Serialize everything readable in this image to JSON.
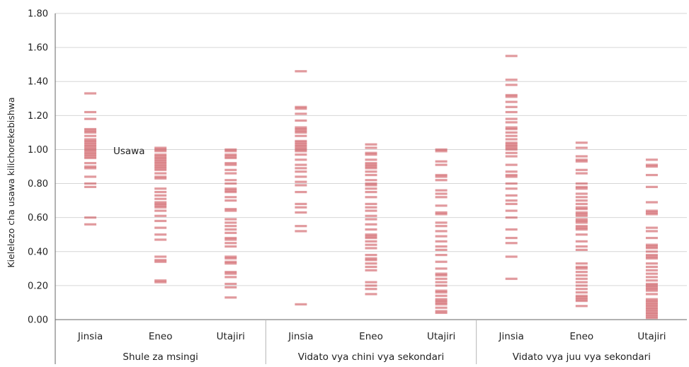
{
  "chart_data": {
    "type": "strip",
    "ylabel": "Kielelezo cha usawa kilichorekebishwa",
    "ylim": [
      0,
      1.8
    ],
    "yticks": [
      "0.00",
      "0.20",
      "0.40",
      "0.60",
      "0.80",
      "1.00",
      "1.20",
      "1.40",
      "1.60",
      "1.80"
    ],
    "grid": true,
    "annotation": {
      "text": "Usawa",
      "y": 1.0
    },
    "groups": [
      "Shule za msingi",
      "Vidato vya chini vya sekondari",
      "Vidato vya juu vya sekondari"
    ],
    "dimensions": [
      "Jinsia",
      "Eneo",
      "Utajiri"
    ],
    "series": [
      {
        "group": "Shule za msingi",
        "category": "Jinsia",
        "values": [
          1.33,
          1.22,
          1.18,
          1.12,
          1.11,
          1.1,
          1.08,
          1.06,
          1.05,
          1.04,
          1.03,
          1.02,
          1.01,
          1.0,
          0.99,
          0.98,
          0.97,
          0.96,
          0.95,
          0.92,
          0.9,
          0.89,
          0.84,
          0.8,
          0.78,
          0.6,
          0.56
        ]
      },
      {
        "group": "Shule za msingi",
        "category": "Eneo",
        "values": [
          1.01,
          1.0,
          0.99,
          0.97,
          0.96,
          0.95,
          0.94,
          0.93,
          0.92,
          0.91,
          0.9,
          0.89,
          0.88,
          0.86,
          0.84,
          0.83,
          0.77,
          0.75,
          0.73,
          0.71,
          0.69,
          0.68,
          0.67,
          0.66,
          0.64,
          0.61,
          0.58,
          0.54,
          0.5,
          0.47,
          0.37,
          0.35,
          0.34,
          0.23,
          0.22
        ]
      },
      {
        "group": "Shule za msingi",
        "category": "Utajiri",
        "values": [
          1.0,
          0.99,
          0.97,
          0.96,
          0.95,
          0.92,
          0.91,
          0.88,
          0.86,
          0.82,
          0.8,
          0.77,
          0.76,
          0.75,
          0.72,
          0.7,
          0.65,
          0.64,
          0.59,
          0.57,
          0.55,
          0.53,
          0.51,
          0.48,
          0.47,
          0.45,
          0.43,
          0.37,
          0.36,
          0.34,
          0.33,
          0.28,
          0.27,
          0.25,
          0.21,
          0.19,
          0.13
        ]
      },
      {
        "group": "Vidato vya chini vya sekondari",
        "category": "Jinsia",
        "values": [
          1.46,
          1.25,
          1.24,
          1.21,
          1.17,
          1.13,
          1.12,
          1.11,
          1.1,
          1.08,
          1.05,
          1.04,
          1.03,
          1.02,
          1.01,
          1.0,
          0.99,
          0.97,
          0.94,
          0.91,
          0.89,
          0.87,
          0.84,
          0.81,
          0.79,
          0.75,
          0.68,
          0.66,
          0.63,
          0.55,
          0.52,
          0.09
        ]
      },
      {
        "group": "Vidato vya chini vya sekondari",
        "category": "Eneo",
        "values": [
          1.03,
          1.01,
          0.98,
          0.97,
          0.94,
          0.92,
          0.91,
          0.9,
          0.89,
          0.87,
          0.85,
          0.82,
          0.8,
          0.79,
          0.77,
          0.75,
          0.72,
          0.68,
          0.66,
          0.64,
          0.61,
          0.59,
          0.56,
          0.53,
          0.5,
          0.49,
          0.48,
          0.46,
          0.44,
          0.42,
          0.38,
          0.36,
          0.35,
          0.33,
          0.31,
          0.29,
          0.22,
          0.2,
          0.18,
          0.15
        ]
      },
      {
        "group": "Vidato vya chini vya sekondari",
        "category": "Utajiri",
        "values": [
          1.0,
          0.99,
          0.93,
          0.91,
          0.85,
          0.84,
          0.82,
          0.76,
          0.74,
          0.72,
          0.67,
          0.63,
          0.62,
          0.57,
          0.55,
          0.52,
          0.49,
          0.46,
          0.43,
          0.41,
          0.38,
          0.34,
          0.3,
          0.27,
          0.26,
          0.24,
          0.22,
          0.2,
          0.17,
          0.16,
          0.14,
          0.12,
          0.11,
          0.1,
          0.09,
          0.07,
          0.05,
          0.04
        ]
      },
      {
        "group": "Vidato vya juu vya sekondari",
        "category": "Jinsia",
        "values": [
          1.55,
          1.41,
          1.38,
          1.32,
          1.31,
          1.28,
          1.25,
          1.22,
          1.18,
          1.16,
          1.13,
          1.12,
          1.1,
          1.08,
          1.06,
          1.04,
          1.03,
          1.02,
          1.01,
          1.0,
          0.98,
          0.96,
          0.91,
          0.87,
          0.85,
          0.84,
          0.8,
          0.77,
          0.73,
          0.7,
          0.68,
          0.64,
          0.6,
          0.53,
          0.48,
          0.45,
          0.37,
          0.24
        ]
      },
      {
        "group": "Vidato vya juu vya sekondari",
        "category": "Eneo",
        "values": [
          1.04,
          1.01,
          0.96,
          0.94,
          0.93,
          0.88,
          0.86,
          0.8,
          0.78,
          0.77,
          0.74,
          0.72,
          0.7,
          0.68,
          0.66,
          0.65,
          0.63,
          0.62,
          0.61,
          0.59,
          0.58,
          0.57,
          0.55,
          0.54,
          0.53,
          0.5,
          0.46,
          0.43,
          0.41,
          0.33,
          0.31,
          0.3,
          0.28,
          0.26,
          0.24,
          0.22,
          0.2,
          0.18,
          0.16,
          0.14,
          0.13,
          0.12,
          0.11,
          0.08
        ]
      },
      {
        "group": "Vidato vya juu vya sekondari",
        "category": "Utajiri",
        "values": [
          0.94,
          0.91,
          0.9,
          0.85,
          0.78,
          0.69,
          0.64,
          0.63,
          0.62,
          0.54,
          0.52,
          0.48,
          0.44,
          0.43,
          0.42,
          0.4,
          0.38,
          0.37,
          0.36,
          0.33,
          0.31,
          0.29,
          0.27,
          0.25,
          0.23,
          0.21,
          0.2,
          0.19,
          0.18,
          0.17,
          0.15,
          0.12,
          0.11,
          0.1,
          0.09,
          0.08,
          0.07,
          0.06,
          0.05,
          0.04,
          0.03,
          0.02,
          0.01
        ]
      }
    ],
    "colors": {
      "bar": "#c8474f",
      "grid": "#d6d6d6",
      "axis": "#666666",
      "text": "#222222"
    }
  }
}
